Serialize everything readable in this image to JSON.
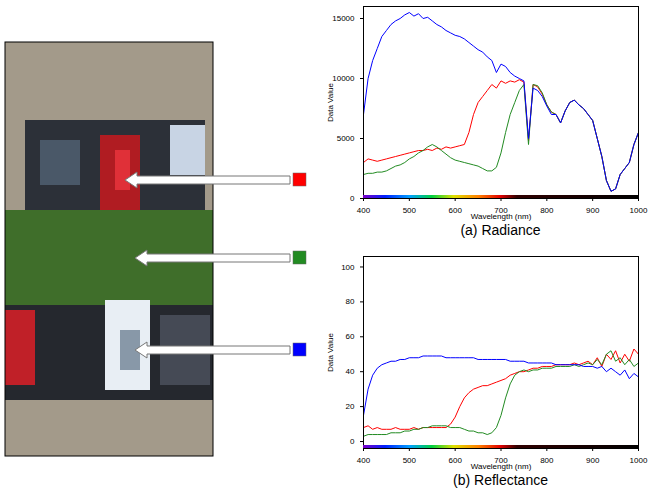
{
  "chart_data": [
    {
      "type": "line",
      "caption": "(a) Radiance",
      "xlabel": "Wavelength (nm)",
      "ylabel": "Data Value",
      "xlim": [
        400,
        1000
      ],
      "xticks": [
        400,
        500,
        600,
        700,
        800,
        900,
        1000
      ],
      "ylim": [
        0,
        16000
      ],
      "yticks": [
        0,
        5000,
        10000,
        15000
      ],
      "x": [
        400,
        410,
        420,
        430,
        440,
        450,
        460,
        470,
        480,
        490,
        500,
        510,
        520,
        530,
        540,
        550,
        560,
        570,
        580,
        590,
        600,
        610,
        620,
        630,
        640,
        650,
        660,
        670,
        680,
        690,
        700,
        710,
        720,
        730,
        740,
        750,
        760,
        770,
        780,
        790,
        800,
        810,
        820,
        830,
        840,
        850,
        860,
        870,
        880,
        890,
        900,
        910,
        920,
        930,
        940,
        950,
        960,
        970,
        980,
        990,
        1000
      ],
      "series": [
        {
          "color": "#ff0000",
          "values": [
            3000,
            3300,
            3200,
            3100,
            3200,
            3300,
            3400,
            3500,
            3600,
            3700,
            3800,
            3900,
            4000,
            4000,
            4100,
            4000,
            4200,
            4100,
            4300,
            4200,
            4300,
            4400,
            4500,
            5500,
            7000,
            8000,
            8500,
            9000,
            9500,
            9200,
            9800,
            9600,
            9800,
            9700,
            9900,
            9700,
            4800,
            9500,
            9300,
            8700,
            7800,
            7200,
            7000,
            6300,
            7300,
            8000,
            8200,
            7800,
            7500,
            7000,
            6500,
            5000,
            3500,
            1500,
            600,
            800,
            2000,
            2500,
            3000,
            4500,
            5500
          ]
        },
        {
          "color": "#228b22",
          "values": [
            2000,
            2100,
            2100,
            2200,
            2200,
            2300,
            2500,
            2700,
            2800,
            3000,
            3300,
            3500,
            3800,
            4000,
            4300,
            4500,
            4300,
            4000,
            3700,
            3400,
            3200,
            3100,
            3000,
            2900,
            2800,
            2700,
            2500,
            2300,
            2300,
            2600,
            3800,
            5500,
            7000,
            8000,
            9000,
            9500,
            4500,
            9500,
            9400,
            8800,
            7800,
            7200,
            7000,
            6300,
            7300,
            8000,
            8200,
            7800,
            7500,
            7000,
            6500,
            5000,
            3500,
            1500,
            600,
            800,
            2000,
            2500,
            3000,
            4500,
            5500
          ]
        },
        {
          "color": "#0000ff",
          "values": [
            7000,
            10000,
            11500,
            12500,
            13500,
            14000,
            14500,
            14800,
            15000,
            15300,
            15500,
            15200,
            15400,
            15000,
            15100,
            14800,
            14500,
            14300,
            14000,
            13800,
            13600,
            13500,
            13300,
            13000,
            12700,
            12400,
            12200,
            11800,
            11500,
            10500,
            11200,
            11000,
            10500,
            10200,
            10000,
            9800,
            5000,
            9200,
            9000,
            8500,
            7700,
            7000,
            7000,
            6300,
            7300,
            8000,
            8200,
            7800,
            7500,
            7000,
            6500,
            5000,
            3500,
            1500,
            600,
            800,
            2000,
            2500,
            3000,
            4500,
            5500
          ]
        }
      ]
    },
    {
      "type": "line",
      "caption": "(b) Reflectance",
      "xlabel": "Wavelength (nm)",
      "ylabel": "Data Value",
      "xlim": [
        400,
        1000
      ],
      "xticks": [
        400,
        500,
        600,
        700,
        800,
        900,
        1000
      ],
      "ylim": [
        -4,
        106
      ],
      "yticks": [
        0,
        20,
        40,
        60,
        80,
        100
      ],
      "x": [
        400,
        410,
        420,
        430,
        440,
        450,
        460,
        470,
        480,
        490,
        500,
        510,
        520,
        530,
        540,
        550,
        560,
        570,
        580,
        590,
        600,
        610,
        620,
        630,
        640,
        650,
        660,
        670,
        680,
        690,
        700,
        710,
        720,
        730,
        740,
        750,
        760,
        770,
        780,
        790,
        800,
        810,
        820,
        830,
        840,
        850,
        860,
        870,
        880,
        890,
        900,
        910,
        920,
        930,
        940,
        950,
        960,
        970,
        980,
        990,
        1000
      ],
      "series": [
        {
          "color": "#ff0000",
          "values": [
            8,
            9,
            7,
            8,
            7,
            7,
            7,
            8,
            7,
            7,
            7,
            8,
            7,
            8,
            8,
            8,
            8,
            8,
            8,
            10,
            14,
            20,
            25,
            28,
            30,
            31,
            32,
            32,
            33,
            34,
            35,
            36,
            38,
            39,
            40,
            40,
            41,
            42,
            42,
            43,
            43,
            43,
            44,
            44,
            44,
            44,
            45,
            44,
            45,
            46,
            44,
            48,
            43,
            50,
            47,
            52,
            45,
            50,
            46,
            53,
            50
          ]
        },
        {
          "color": "#228b22",
          "values": [
            3,
            4,
            4,
            4,
            4,
            4,
            5,
            5,
            5,
            6,
            6,
            7,
            7,
            8,
            8,
            9,
            9,
            9,
            9,
            8,
            8,
            8,
            7,
            6,
            6,
            5,
            5,
            4,
            5,
            8,
            15,
            25,
            33,
            38,
            40,
            41,
            40,
            41,
            41,
            42,
            42,
            42,
            43,
            43,
            43,
            43,
            44,
            43,
            44,
            45,
            44,
            47,
            44,
            50,
            52,
            46,
            48,
            44,
            47,
            43,
            45
          ]
        },
        {
          "color": "#0000ff",
          "values": [
            15,
            30,
            38,
            42,
            44,
            45,
            46,
            46,
            47,
            47,
            48,
            48,
            48,
            49,
            49,
            49,
            49,
            49,
            48,
            48,
            48,
            48,
            48,
            48,
            48,
            47,
            47,
            47,
            47,
            47,
            47,
            47,
            46,
            46,
            46,
            46,
            45,
            45,
            45,
            45,
            45,
            45,
            44,
            44,
            44,
            44,
            44,
            44,
            43,
            43,
            43,
            42,
            43,
            40,
            42,
            40,
            38,
            41,
            36,
            39,
            37
          ]
        }
      ]
    }
  ]
}
